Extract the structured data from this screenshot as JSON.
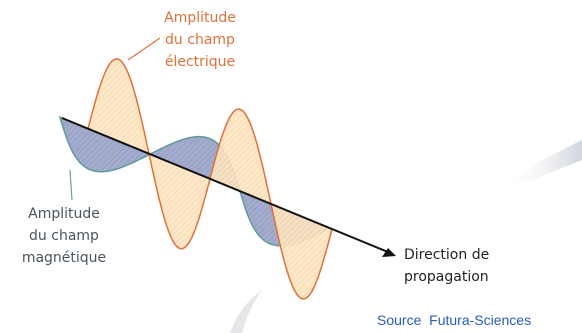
{
  "labels": {
    "electric": {
      "lines": [
        "Amplitude",
        "du champ",
        "électrique"
      ]
    },
    "magnetic": {
      "lines": [
        "Amplitude",
        "du champ",
        "magnétique"
      ]
    },
    "direction": {
      "lines": [
        "Direction de",
        "propagation"
      ]
    }
  },
  "source": "Source  Futura-Sciences"
}
